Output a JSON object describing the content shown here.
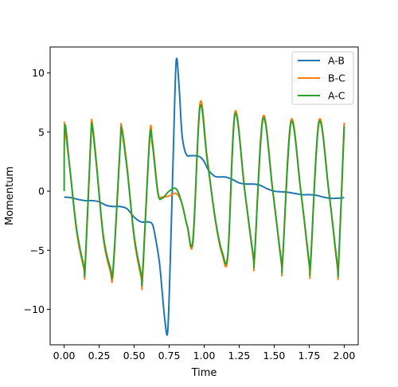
{
  "chart_data": {
    "type": "line",
    "title": "",
    "xlabel": "Time",
    "ylabel": "Momentum",
    "xlim": [
      -0.1,
      2.1
    ],
    "ylim": [
      -13,
      12.2
    ],
    "xticks": [
      0.0,
      0.25,
      0.5,
      0.75,
      1.0,
      1.25,
      1.5,
      1.75,
      2.0
    ],
    "xtick_labels": [
      "0.00",
      "0.25",
      "0.50",
      "0.75",
      "1.00",
      "1.25",
      "1.50",
      "1.75",
      "2.00"
    ],
    "yticks": [
      -10,
      -5,
      0,
      5,
      10
    ],
    "ytick_labels": [
      "−10",
      "−5",
      "0",
      "5",
      "10"
    ],
    "grid": false,
    "legend_position": "top-right",
    "series": [
      {
        "name": "A-B",
        "color": "#1f77b4",
        "x": [
          0.0,
          0.05,
          0.1,
          0.15,
          0.2,
          0.25,
          0.3,
          0.35,
          0.4,
          0.45,
          0.5,
          0.55,
          0.6,
          0.63,
          0.65,
          0.68,
          0.7,
          0.72,
          0.74,
          0.76,
          0.78,
          0.8,
          0.82,
          0.84,
          0.86,
          0.88,
          0.9,
          0.93,
          0.97,
          1.0,
          1.03,
          1.07,
          1.1,
          1.15,
          1.2,
          1.25,
          1.3,
          1.35,
          1.4,
          1.45,
          1.5,
          1.55,
          1.6,
          1.65,
          1.7,
          1.75,
          1.8,
          1.85,
          1.9,
          1.95,
          2.0
        ],
        "y": [
          -0.5,
          -0.55,
          -0.7,
          -0.8,
          -0.8,
          -0.9,
          -1.2,
          -1.3,
          -1.3,
          -1.5,
          -2.2,
          -2.6,
          -2.6,
          -2.8,
          -3.8,
          -6.0,
          -8.5,
          -11.0,
          -11.8,
          -5.0,
          3.5,
          11.0,
          9.0,
          5.0,
          3.5,
          3.0,
          3.0,
          3.0,
          2.9,
          2.5,
          1.8,
          1.3,
          1.2,
          1.2,
          1.0,
          0.7,
          0.6,
          0.6,
          0.5,
          0.2,
          0.0,
          -0.05,
          -0.1,
          -0.2,
          -0.3,
          -0.3,
          -0.35,
          -0.5,
          -0.6,
          -0.6,
          -0.55
        ]
      },
      {
        "name": "B-C",
        "color": "#ff7f0e",
        "x": [
          0.0,
          0.04,
          0.09,
          0.14,
          0.15,
          0.19,
          0.2,
          0.23,
          0.28,
          0.33,
          0.35,
          0.4,
          0.41,
          0.45,
          0.5,
          0.55,
          0.56,
          0.61,
          0.63,
          0.67,
          0.7,
          0.75,
          0.8,
          0.84,
          0.88,
          0.92,
          0.97,
          1.02,
          1.08,
          1.13,
          1.17,
          1.22,
          1.29,
          1.35,
          1.36,
          1.42,
          1.49,
          1.55,
          1.56,
          1.62,
          1.69,
          1.75,
          1.76,
          1.82,
          1.89,
          1.95,
          1.96,
          2.0
        ],
        "y": [
          5.9,
          2.0,
          -3.5,
          -6.5,
          -6.5,
          4.5,
          5.8,
          2.5,
          -4.0,
          -6.8,
          -6.8,
          4.0,
          5.5,
          2.0,
          -4.0,
          -7.3,
          -7.3,
          4.6,
          4.3,
          -0.1,
          -0.5,
          -0.4,
          -0.2,
          -1.0,
          -3.0,
          -4.3,
          7.4,
          3.0,
          -2.5,
          -5.4,
          -5.4,
          6.7,
          0.0,
          -5.6,
          -5.6,
          6.3,
          0.0,
          -6.0,
          -6.0,
          6.0,
          0.0,
          -6.2,
          -6.2,
          6.0,
          0.0,
          -6.3,
          -6.3,
          5.8
        ]
      },
      {
        "name": "A-C",
        "color": "#2ca02c",
        "x": [
          0.0,
          0.005,
          0.04,
          0.09,
          0.14,
          0.15,
          0.19,
          0.2,
          0.23,
          0.28,
          0.33,
          0.35,
          0.4,
          0.41,
          0.45,
          0.5,
          0.55,
          0.56,
          0.61,
          0.63,
          0.67,
          0.7,
          0.75,
          0.8,
          0.84,
          0.88,
          0.92,
          0.97,
          1.02,
          1.08,
          1.13,
          1.17,
          1.22,
          1.29,
          1.35,
          1.36,
          1.42,
          1.49,
          1.55,
          1.56,
          1.62,
          1.69,
          1.75,
          1.76,
          1.82,
          1.89,
          1.95,
          1.96,
          2.0
        ],
        "y": [
          0.0,
          5.6,
          2.0,
          -3.3,
          -6.3,
          -6.3,
          4.3,
          5.5,
          2.3,
          -3.8,
          -6.5,
          -6.5,
          3.8,
          5.2,
          1.8,
          -3.8,
          -7.0,
          -7.0,
          4.3,
          4.0,
          -0.2,
          -0.6,
          0.0,
          0.2,
          -1.0,
          -3.0,
          -4.1,
          7.1,
          2.8,
          -2.4,
          -5.2,
          -5.2,
          6.5,
          0.0,
          -5.4,
          -5.4,
          6.1,
          0.0,
          -5.8,
          -5.8,
          5.8,
          0.0,
          -6.0,
          -6.0,
          5.8,
          0.0,
          -6.1,
          -6.1,
          5.5
        ]
      }
    ]
  }
}
